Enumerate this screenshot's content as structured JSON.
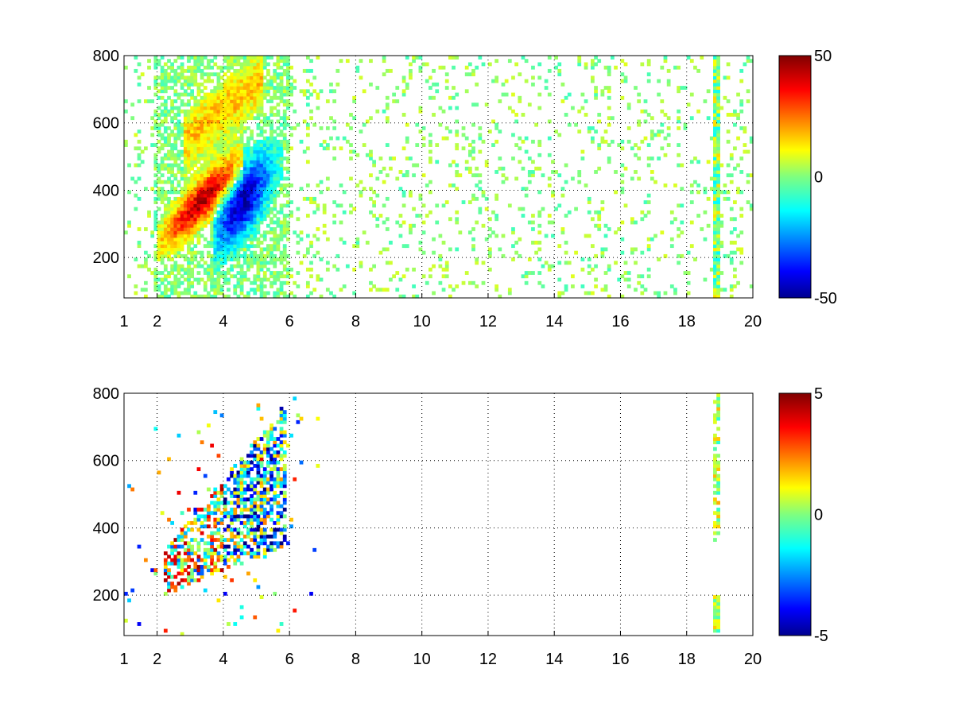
{
  "colormap": "jet",
  "chart_data": [
    {
      "type": "heatmap",
      "title": "",
      "xlabel": "",
      "ylabel": "",
      "xlim": [
        1,
        20
      ],
      "ylim": [
        80,
        800
      ],
      "xticks": [
        "1",
        "2",
        "4",
        "6",
        "8",
        "10",
        "12",
        "14",
        "16",
        "18",
        "20"
      ],
      "yticks": [
        "200",
        "400",
        "600",
        "800"
      ],
      "grid": true,
      "colorbar": {
        "min": -50,
        "max": 50,
        "ticks": [
          "50",
          "0",
          "-50"
        ]
      },
      "features": [
        {
          "description": "positive ridge",
          "x_range": [
            2.2,
            4.4
          ],
          "y_center": [
            270,
            450
          ],
          "value": 40
        },
        {
          "description": "negative band",
          "x_range": [
            3.8,
            5.5
          ],
          "y_center": [
            300,
            480
          ],
          "value": -40
        },
        {
          "description": "positive upper branch",
          "x_range": [
            3.0,
            5.0
          ],
          "y_center": [
            600,
            760
          ],
          "value": 15
        },
        {
          "description": "vertical streak",
          "x": 18.9,
          "y_range": [
            90,
            800
          ],
          "value": 10
        }
      ]
    },
    {
      "type": "heatmap",
      "title": "",
      "xlabel": "",
      "ylabel": "",
      "xlim": [
        1,
        20
      ],
      "ylim": [
        80,
        800
      ],
      "xticks": [
        "1",
        "2",
        "4",
        "6",
        "8",
        "10",
        "12",
        "14",
        "16",
        "18",
        "20"
      ],
      "yticks": [
        "200",
        "400",
        "600",
        "800"
      ],
      "grid": true,
      "colorbar": {
        "min": -5,
        "max": 5,
        "ticks": [
          "5",
          "0",
          "-5"
        ]
      },
      "features": [
        {
          "description": "sparse cluster",
          "x_range": [
            2.2,
            5.9
          ],
          "y_center": [
            260,
            700
          ],
          "value": 0
        },
        {
          "description": "vertical streak",
          "x": 18.9,
          "y_range": [
            100,
            800
          ],
          "value": 1
        }
      ]
    }
  ]
}
